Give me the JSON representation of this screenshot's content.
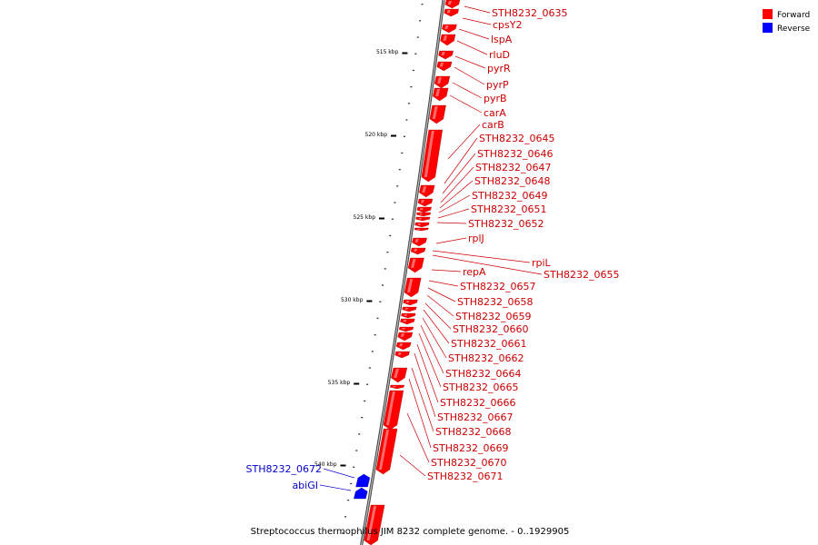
{
  "legend": [
    {
      "label": "Forward",
      "color": "#ff0000"
    },
    {
      "label": "Reverse",
      "color": "#0000ff"
    }
  ],
  "caption": "Streptococcus thermophilus JIM 8232 complete genome. - 0..1929905",
  "ticks": [
    {
      "label": "515 kbp"
    },
    {
      "label": "520 kbp"
    },
    {
      "label": "525 kbp"
    },
    {
      "label": "530 kbp"
    },
    {
      "label": "535 kbp"
    },
    {
      "label": "540 kbp"
    }
  ],
  "forward_genes": [
    "STH8232_0635",
    "cpsY2",
    "lspA",
    "rluD",
    "pyrR",
    "pyrP",
    "pyrB",
    "carA",
    "carB",
    "STH8232_0645",
    "STH8232_0646",
    "STH8232_0647",
    "STH8232_0648",
    "STH8232_0649",
    "STH8232_0651",
    "STH8232_0652",
    "rplJ",
    "rpiL",
    "STH8232_0655",
    "repA",
    "STH8232_0657",
    "STH8232_0658",
    "STH8232_0659",
    "STH8232_0660",
    "STH8232_0661",
    "STH8232_0662",
    "STH8232_0664",
    "STH8232_0665",
    "STH8232_0666",
    "STH8232_0667",
    "STH8232_0668",
    "STH8232_0669",
    "STH8232_0670",
    "STH8232_0671"
  ],
  "reverse_genes": [
    "STH8232_0672",
    "abiGI"
  ],
  "colors": {
    "forward": "#ff0000",
    "reverse": "#0000ff",
    "forward_label": "#cc0000",
    "reverse_label": "#0000cc",
    "axis": "#888888"
  }
}
